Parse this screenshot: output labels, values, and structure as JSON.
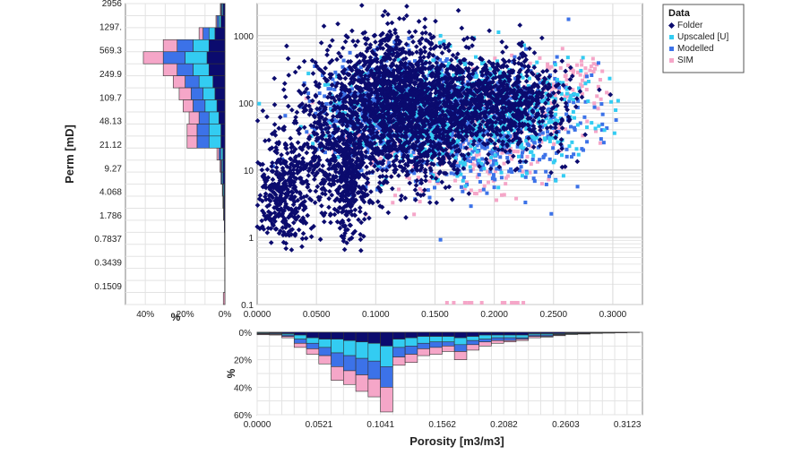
{
  "chart_data": {
    "type": "scatter",
    "title": "",
    "xlabel": "Porosity [m3/m3]",
    "ylabel": "Perm [mD]",
    "xlim": [
      0,
      0.325
    ],
    "ylim_log": [
      0.1,
      3000
    ],
    "x_ticks": [
      "0.0000",
      "0.0500",
      "0.1000",
      "0.1500",
      "0.2000",
      "0.2500",
      "0.3000"
    ],
    "y_ticks": [
      "1000",
      "100",
      "10",
      "1",
      "0.1"
    ],
    "legend": {
      "title": "Data",
      "placement": "top-right",
      "entries": [
        {
          "name": "Folder",
          "color": "#0b0b6e",
          "marker": "diamond"
        },
        {
          "name": "Upscaled [U]",
          "color": "#33ccf2",
          "marker": "square"
        },
        {
          "name": "Modelled",
          "color": "#3c72e8",
          "marker": "square"
        },
        {
          "name": "SIM",
          "color": "#f5a6c8",
          "marker": "square"
        }
      ]
    },
    "series_clusters": [
      {
        "name": "Folder",
        "clusters": [
          {
            "cx": 0.115,
            "cy_log": 2.1,
            "sx": 0.03,
            "sy": 0.45,
            "n": 1400
          },
          {
            "cx": 0.2,
            "cy_log": 2.0,
            "sx": 0.03,
            "sy": 0.35,
            "n": 900
          },
          {
            "cx": 0.06,
            "cy_log": 1.2,
            "sx": 0.025,
            "sy": 0.5,
            "n": 500
          },
          {
            "cx": 0.02,
            "cy_log": 0.6,
            "sx": 0.012,
            "sy": 0.35,
            "n": 300
          },
          {
            "cx": 0.078,
            "cy_log": 0.8,
            "sx": 0.008,
            "sy": 0.45,
            "n": 250
          },
          {
            "cx": 0.14,
            "cy_log": 1.4,
            "sx": 0.02,
            "sy": 0.4,
            "n": 300
          }
        ]
      },
      {
        "name": "Upscaled [U]",
        "clusters": [
          {
            "cx": 0.2,
            "cy_log": 1.9,
            "sx": 0.04,
            "sy": 0.4,
            "n": 450
          },
          {
            "cx": 0.13,
            "cy_log": 1.8,
            "sx": 0.04,
            "sy": 0.4,
            "n": 350
          }
        ]
      },
      {
        "name": "Modelled",
        "clusters": [
          {
            "cx": 0.18,
            "cy_log": 1.7,
            "sx": 0.05,
            "sy": 0.45,
            "n": 800
          },
          {
            "cx": 0.11,
            "cy_log": 1.9,
            "sx": 0.03,
            "sy": 0.4,
            "n": 400
          }
        ]
      },
      {
        "name": "SIM",
        "clusters": [
          {
            "cx": 0.17,
            "cy_log": 1.5,
            "sx": 0.05,
            "sy": 0.5,
            "n": 350
          },
          {
            "cx": 0.26,
            "cy_log": 2.3,
            "sx": 0.02,
            "sy": 0.2,
            "n": 80
          }
        ]
      }
    ],
    "sim_floor_band": [
      0.16,
      0.24
    ],
    "perm_histogram": {
      "axis_label": "%",
      "x_ticks": [
        "40%",
        "20%",
        "0%"
      ],
      "x_max_pct": 50,
      "bin_labels": [
        "2956",
        "1297.",
        "569.3",
        "249.9",
        "109.7",
        "48.13",
        "21.12",
        "9.27",
        "4.068",
        "1.786",
        "0.7837",
        "0.3439",
        "0.1509"
      ],
      "bins": [
        [
          1,
          0.5,
          0.5,
          0.3
        ],
        [
          2,
          1,
          1,
          0.5
        ],
        [
          5,
          3,
          3,
          2
        ],
        [
          8,
          8,
          8,
          7
        ],
        [
          9,
          11,
          11,
          10
        ],
        [
          8,
          8,
          8,
          7
        ],
        [
          6,
          7,
          7,
          6
        ],
        [
          5,
          6,
          6,
          6
        ],
        [
          4,
          6,
          6,
          5
        ],
        [
          3,
          5,
          5,
          5
        ],
        [
          2,
          6,
          6,
          5
        ],
        [
          2,
          6,
          6,
          5
        ],
        [
          1,
          1,
          1,
          1
        ],
        [
          1,
          0.5,
          0.5,
          0.5
        ],
        [
          1,
          0.5,
          0.5,
          0
        ],
        [
          0.5,
          0.5,
          0.3,
          0
        ],
        [
          0.5,
          0.3,
          0.2,
          0
        ],
        [
          0.5,
          0.2,
          0,
          0
        ],
        [
          0.3,
          0,
          0,
          0
        ],
        [
          0.2,
          0,
          0,
          0
        ],
        [
          0.2,
          0,
          0,
          0
        ],
        [
          0.1,
          0,
          0,
          0
        ],
        [
          0.1,
          0,
          0,
          0
        ],
        [
          0.1,
          0,
          0,
          0
        ],
        [
          0,
          0,
          0,
          0.8
        ]
      ]
    },
    "porosity_histogram": {
      "axis_label": "%",
      "x_label": "Porosity [m3/m3]",
      "y_ticks": [
        "0%",
        "20%",
        "40%",
        "60%"
      ],
      "y_max_pct": 60,
      "x_ticks": [
        "0.0000",
        "0.0521",
        "0.1041",
        "0.1562",
        "0.2082",
        "0.2603",
        "0.3123"
      ],
      "bin_width": 0.0104,
      "bins": [
        [
          0.3,
          0.5,
          0.5,
          0.5
        ],
        [
          0.5,
          0.5,
          0.5,
          0.5
        ],
        [
          1,
          1,
          1,
          1
        ],
        [
          2,
          3,
          3,
          3
        ],
        [
          4,
          4,
          4,
          4
        ],
        [
          5,
          6,
          6,
          6
        ],
        [
          5,
          10,
          10,
          10
        ],
        [
          6,
          11,
          11,
          10
        ],
        [
          7,
          12,
          12,
          12
        ],
        [
          8,
          13,
          13,
          13
        ],
        [
          10,
          15,
          15,
          18
        ],
        [
          5,
          6,
          7,
          6
        ],
        [
          4,
          6,
          6,
          6
        ],
        [
          3,
          5,
          4,
          5
        ],
        [
          3,
          4,
          4,
          5
        ],
        [
          3,
          4,
          3,
          4
        ],
        [
          4,
          5,
          5,
          6
        ],
        [
          3,
          3,
          3,
          4
        ],
        [
          2,
          3,
          2,
          3
        ],
        [
          2,
          2,
          2,
          2
        ],
        [
          2,
          2,
          2,
          1
        ],
        [
          2,
          2,
          1,
          1
        ],
        [
          1,
          1,
          1,
          1
        ],
        [
          1,
          1,
          1,
          0.5
        ],
        [
          1,
          0.5,
          0.5,
          0.5
        ],
        [
          0.5,
          0.5,
          0.3,
          0.3
        ],
        [
          0.5,
          0.3,
          0.3,
          0.2
        ],
        [
          0.3,
          0.2,
          0.2,
          0.1
        ],
        [
          0.2,
          0.2,
          0.1,
          0.1
        ],
        [
          0.1,
          0.1,
          0.1,
          0.1
        ],
        [
          0.1,
          0.1,
          0,
          0
        ]
      ]
    }
  }
}
